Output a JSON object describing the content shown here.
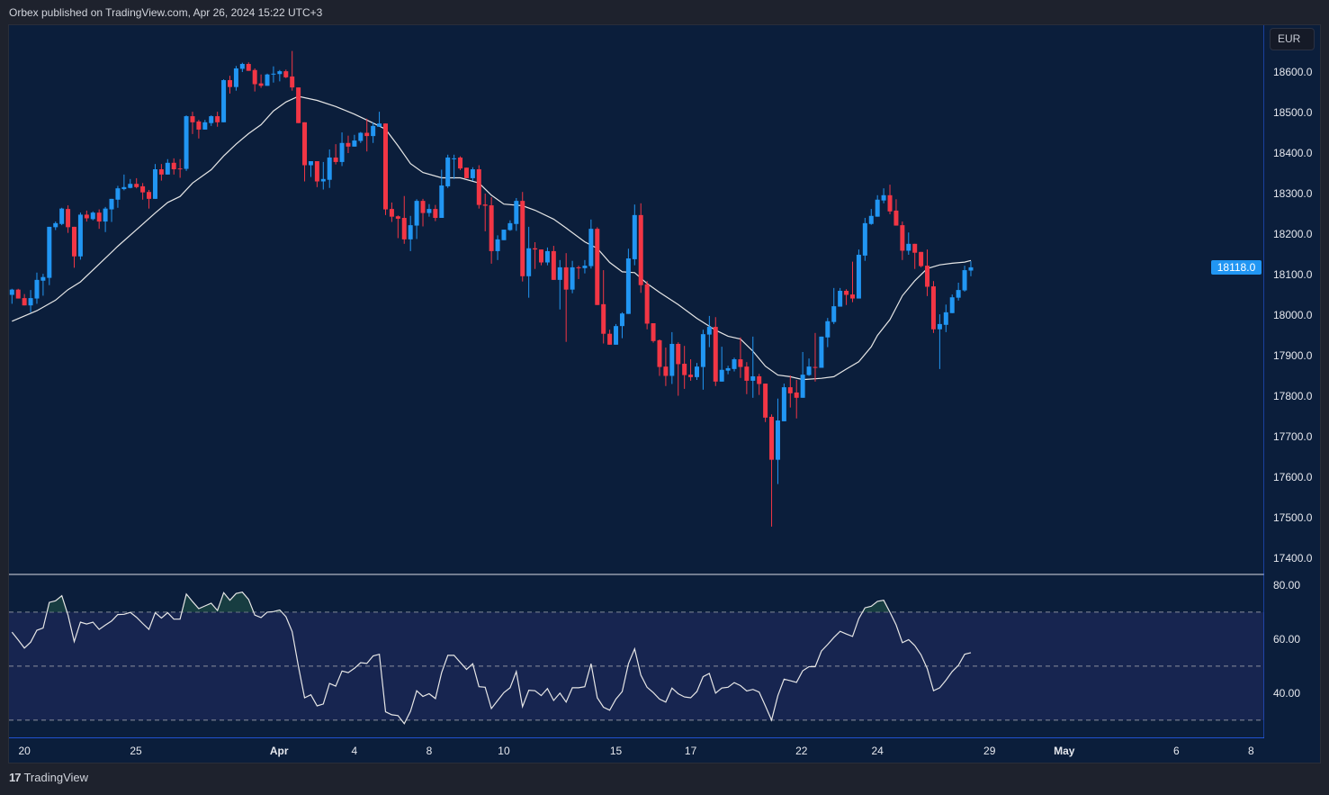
{
  "header": {
    "text": "Orbex published on TradingView.com, Apr 26, 2024 15:22 UTC+3"
  },
  "footer": {
    "logo_glyph": "17",
    "brand": "TradingView"
  },
  "currency_button": "EUR",
  "last_price_label": "18118.0",
  "colors": {
    "up": "#2196f3",
    "down": "#f23645",
    "ma": "#e6e6e6",
    "rsi": "#e6e6e6",
    "background": "#0b1e3b",
    "rsi_band": "#172550",
    "last_tag": "#2196f3"
  },
  "chart_data": {
    "type": "candlestick",
    "title": "",
    "ylim": [
      17360.0,
      18715.6
    ],
    "price_ticks": [
      "18600.0",
      "18500.0",
      "18400.0",
      "18300.0",
      "18200.0",
      "18100.0",
      "18000.0",
      "17900.0",
      "17800.0",
      "17700.0",
      "17600.0",
      "17500.0",
      "17400.0"
    ],
    "x_ticks": [
      {
        "label": "20",
        "index": 3,
        "bold": false
      },
      {
        "label": "25",
        "index": 20.9,
        "bold": false
      },
      {
        "label": "Apr",
        "index": 43.9,
        "bold": true
      },
      {
        "label": "4",
        "index": 56,
        "bold": false
      },
      {
        "label": "8",
        "index": 68,
        "bold": false
      },
      {
        "label": "10",
        "index": 80,
        "bold": false
      },
      {
        "label": "15",
        "index": 98,
        "bold": false
      },
      {
        "label": "17",
        "index": 110,
        "bold": false
      },
      {
        "label": "22",
        "index": 127.8,
        "bold": false
      },
      {
        "label": "24",
        "index": 140,
        "bold": false
      },
      {
        "label": "29",
        "index": 158,
        "bold": false
      },
      {
        "label": "May",
        "index": 170,
        "bold": true
      },
      {
        "label": "6",
        "index": 188,
        "bold": false
      },
      {
        "label": "8",
        "index": 200,
        "bold": false
      }
    ],
    "candles_ohlc": [
      [
        18050,
        18065,
        18028,
        18063
      ],
      [
        18063,
        18065,
        18041,
        18041
      ],
      [
        18042,
        18052,
        18024,
        18024
      ],
      [
        18024,
        18062,
        18007,
        18042
      ],
      [
        18041,
        18105,
        18028,
        18087
      ],
      [
        18085,
        18102,
        18048,
        18094
      ],
      [
        18092,
        18218,
        18074,
        18218
      ],
      [
        18217,
        18231,
        18210,
        18227
      ],
      [
        18225,
        18265,
        18222,
        18263
      ],
      [
        18262,
        18271,
        18203,
        18217
      ],
      [
        18218,
        18218,
        18117,
        18145
      ],
      [
        18145,
        18253,
        18137,
        18248
      ],
      [
        18248,
        18258,
        18231,
        18239
      ],
      [
        18237,
        18256,
        18234,
        18253
      ],
      [
        18253,
        18261,
        18213,
        18231
      ],
      [
        18231,
        18267,
        18205,
        18263
      ],
      [
        18261,
        18287,
        18230,
        18287
      ],
      [
        18285,
        18319,
        18265,
        18313
      ],
      [
        18311,
        18347,
        18308,
        18316
      ],
      [
        18314,
        18336,
        18313,
        18324
      ],
      [
        18324,
        18338,
        18313,
        18316
      ],
      [
        18318,
        18326,
        18285,
        18303
      ],
      [
        18304,
        18309,
        18263,
        18287
      ],
      [
        18287,
        18373,
        18287,
        18360
      ],
      [
        18360,
        18373,
        18332,
        18347
      ],
      [
        18347,
        18385,
        18347,
        18376
      ],
      [
        18376,
        18387,
        18347,
        18360
      ],
      [
        18362,
        18385,
        18339,
        18361
      ],
      [
        18361,
        18493,
        18356,
        18491
      ],
      [
        18491,
        18502,
        18447,
        18476
      ],
      [
        18478,
        18482,
        18436,
        18458
      ],
      [
        18458,
        18482,
        18458,
        18476
      ],
      [
        18474,
        18493,
        18467,
        18491
      ],
      [
        18491,
        18502,
        18465,
        18476
      ],
      [
        18476,
        18582,
        18476,
        18580
      ],
      [
        18580,
        18591,
        18547,
        18563
      ],
      [
        18563,
        18615,
        18554,
        18609
      ],
      [
        18608,
        18623,
        18600,
        18620
      ],
      [
        18620,
        18624,
        18603,
        18603
      ],
      [
        18605,
        18609,
        18552,
        18570
      ],
      [
        18572,
        18594,
        18561,
        18566
      ],
      [
        18566,
        18596,
        18566,
        18594
      ],
      [
        18595,
        18614,
        18574,
        18596
      ],
      [
        18595,
        18605,
        18577,
        18602
      ],
      [
        18602,
        18606,
        18585,
        18587
      ],
      [
        18589,
        18652,
        18554,
        18562
      ],
      [
        18562,
        18562,
        18474,
        18474
      ],
      [
        18476,
        18476,
        18330,
        18370
      ],
      [
        18370,
        18380,
        18341,
        18380
      ],
      [
        18380,
        18380,
        18316,
        18330
      ],
      [
        18330,
        18378,
        18310,
        18336
      ],
      [
        18334,
        18409,
        18314,
        18389
      ],
      [
        18389,
        18422,
        18372,
        18378
      ],
      [
        18378,
        18451,
        18368,
        18425
      ],
      [
        18425,
        18443,
        18400,
        18416
      ],
      [
        18416,
        18445,
        18416,
        18431
      ],
      [
        18430,
        18452,
        18425,
        18450
      ],
      [
        18450,
        18485,
        18404,
        18442
      ],
      [
        18442,
        18476,
        18425,
        18467
      ],
      [
        18465,
        18502,
        18465,
        18473
      ],
      [
        18473,
        18473,
        18247,
        18261
      ],
      [
        18262,
        18278,
        18230,
        18243
      ],
      [
        18244,
        18246,
        18190,
        18238
      ],
      [
        18240,
        18294,
        18176,
        18187
      ],
      [
        18187,
        18245,
        18158,
        18222
      ],
      [
        18221,
        18286,
        18188,
        18282
      ],
      [
        18282,
        18287,
        18219,
        18252
      ],
      [
        18252,
        18274,
        18243,
        18262
      ],
      [
        18262,
        18272,
        18232,
        18240
      ],
      [
        18240,
        18359,
        18240,
        18320
      ],
      [
        18318,
        18396,
        18314,
        18389
      ],
      [
        18387,
        18396,
        18336,
        18387
      ],
      [
        18389,
        18392,
        18358,
        18362
      ],
      [
        18364,
        18364,
        18338,
        18338
      ],
      [
        18338,
        18365,
        18331,
        18360
      ],
      [
        18360,
        18370,
        18263,
        18272
      ],
      [
        18273,
        18300,
        18207,
        18270
      ],
      [
        18271,
        18291,
        18127,
        18158
      ],
      [
        18158,
        18197,
        18136,
        18187
      ],
      [
        18185,
        18211,
        18185,
        18211
      ],
      [
        18210,
        18234,
        18208,
        18227
      ],
      [
        18225,
        18289,
        18208,
        18282
      ],
      [
        18282,
        18304,
        18083,
        18096
      ],
      [
        18096,
        18218,
        18043,
        18165
      ],
      [
        18165,
        18180,
        18114,
        18162
      ],
      [
        18162,
        18162,
        18123,
        18130
      ],
      [
        18130,
        18167,
        18123,
        18158
      ],
      [
        18158,
        18171,
        18087,
        18087
      ],
      [
        18087,
        18136,
        18014,
        18118
      ],
      [
        18118,
        18153,
        17934,
        18063
      ],
      [
        18063,
        18134,
        18054,
        18118
      ],
      [
        18118,
        18122,
        18089,
        18117
      ],
      [
        18116,
        18136,
        18103,
        18122
      ],
      [
        18121,
        18236,
        18115,
        18213
      ],
      [
        18213,
        18217,
        18025,
        18025
      ],
      [
        18027,
        18111,
        17930,
        17954
      ],
      [
        17954,
        17964,
        17927,
        17927
      ],
      [
        17927,
        17978,
        17927,
        17973
      ],
      [
        17973,
        18007,
        17943,
        18004
      ],
      [
        18003,
        18164,
        18003,
        18140
      ],
      [
        18138,
        18273,
        18123,
        18247
      ],
      [
        18247,
        18276,
        18055,
        18074
      ],
      [
        18076,
        18084,
        17965,
        17979
      ],
      [
        17980,
        17980,
        17932,
        17936
      ],
      [
        17938,
        17940,
        17850,
        17872
      ],
      [
        17873,
        17920,
        17825,
        17850
      ],
      [
        17850,
        17958,
        17830,
        17929
      ],
      [
        17929,
        17933,
        17801,
        17879
      ],
      [
        17880,
        17924,
        17818,
        17852
      ],
      [
        17853,
        17891,
        17838,
        17847
      ],
      [
        17847,
        17882,
        17840,
        17873
      ],
      [
        17872,
        17964,
        17816,
        17953
      ],
      [
        17952,
        17998,
        17921,
        17971
      ],
      [
        17971,
        17995,
        17825,
        17836
      ],
      [
        17836,
        17922,
        17836,
        17865
      ],
      [
        17863,
        17875,
        17854,
        17869
      ],
      [
        17867,
        17895,
        17861,
        17891
      ],
      [
        17891,
        17945,
        17845,
        17872
      ],
      [
        17873,
        17884,
        17805,
        17838
      ],
      [
        17838,
        17947,
        17796,
        17849
      ],
      [
        17849,
        17855,
        17803,
        17830
      ],
      [
        17831,
        17831,
        17736,
        17747
      ],
      [
        17749,
        17755,
        17478,
        17643
      ],
      [
        17643,
        17794,
        17583,
        17740
      ],
      [
        17738,
        17831,
        17738,
        17822
      ],
      [
        17822,
        17851,
        17772,
        17807
      ],
      [
        17809,
        17840,
        17745,
        17796
      ],
      [
        17796,
        17909,
        17796,
        17853
      ],
      [
        17852,
        17893,
        17850,
        17873
      ],
      [
        17872,
        17956,
        17836,
        17871
      ],
      [
        17870,
        17947,
        17870,
        17947
      ],
      [
        17945,
        17993,
        17921,
        17985
      ],
      [
        17983,
        18067,
        17978,
        18022
      ],
      [
        18021,
        18067,
        18021,
        18060
      ],
      [
        18060,
        18064,
        18025,
        18050
      ],
      [
        18051,
        18132,
        18032,
        18041
      ],
      [
        18041,
        18162,
        18041,
        18149
      ],
      [
        18147,
        18240,
        18134,
        18227
      ],
      [
        18225,
        18262,
        18223,
        18245
      ],
      [
        18243,
        18296,
        18243,
        18285
      ],
      [
        18283,
        18313,
        18276,
        18296
      ],
      [
        18296,
        18322,
        18249,
        18256
      ],
      [
        18258,
        18286,
        18221,
        18221
      ],
      [
        18222,
        18231,
        18136,
        18159
      ],
      [
        18159,
        18204,
        18149,
        18176
      ],
      [
        18176,
        18176,
        18114,
        18154
      ],
      [
        18156,
        18156,
        18118,
        18121
      ],
      [
        18122,
        18162,
        18047,
        18070
      ],
      [
        18071,
        18084,
        17956,
        17965
      ],
      [
        17965,
        18002,
        17867,
        17978
      ],
      [
        17976,
        18026,
        17958,
        18007
      ],
      [
        18005,
        18051,
        18005,
        18044
      ],
      [
        18043,
        18080,
        18036,
        18062
      ],
      [
        18061,
        18122,
        18058,
        18111
      ],
      [
        18110,
        18133,
        18096,
        18118
      ]
    ],
    "moving_average": [
      [
        1,
        17985
      ],
      [
        5,
        18011
      ],
      [
        8,
        18037
      ],
      [
        10,
        18063
      ],
      [
        12,
        18082
      ],
      [
        15,
        18126
      ],
      [
        18,
        18170
      ],
      [
        21,
        18211
      ],
      [
        24,
        18252
      ],
      [
        26,
        18278
      ],
      [
        28,
        18293
      ],
      [
        30,
        18326
      ],
      [
        33,
        18359
      ],
      [
        35,
        18393
      ],
      [
        37,
        18422
      ],
      [
        39,
        18448
      ],
      [
        41,
        18470
      ],
      [
        43,
        18504
      ],
      [
        45,
        18526
      ],
      [
        47,
        18540
      ],
      [
        50,
        18530
      ],
      [
        53,
        18515
      ],
      [
        56,
        18496
      ],
      [
        59,
        18474
      ],
      [
        61,
        18459
      ],
      [
        63,
        18418
      ],
      [
        65,
        18374
      ],
      [
        67,
        18352
      ],
      [
        70,
        18339
      ],
      [
        73,
        18339
      ],
      [
        76,
        18326
      ],
      [
        78,
        18296
      ],
      [
        80,
        18274
      ],
      [
        83,
        18270
      ],
      [
        85,
        18259
      ],
      [
        88,
        18237
      ],
      [
        90,
        18215
      ],
      [
        93,
        18181
      ],
      [
        95,
        18165
      ],
      [
        97,
        18130
      ],
      [
        99,
        18107
      ],
      [
        101,
        18105
      ],
      [
        103,
        18078
      ],
      [
        105,
        18056
      ],
      [
        108,
        18026
      ],
      [
        111,
        17992
      ],
      [
        114,
        17963
      ],
      [
        116,
        17948
      ],
      [
        118,
        17941
      ],
      [
        120,
        17911
      ],
      [
        122,
        17874
      ],
      [
        124,
        17852
      ],
      [
        126,
        17848
      ],
      [
        128,
        17841
      ],
      [
        131,
        17844
      ],
      [
        133,
        17848
      ],
      [
        135,
        17867
      ],
      [
        137,
        17885
      ],
      [
        139,
        17922
      ],
      [
        140,
        17950
      ],
      [
        142,
        17989
      ],
      [
        144,
        18048
      ],
      [
        146,
        18085
      ],
      [
        148,
        18115
      ],
      [
        150,
        18124
      ],
      [
        152,
        18128
      ],
      [
        154,
        18131
      ],
      [
        155,
        18135
      ]
    ],
    "rsi": {
      "ylim": [
        23.3,
        83.3
      ],
      "levels": [
        70,
        50,
        30
      ],
      "ticks": [
        "80.00",
        "60.00",
        "40.00"
      ],
      "values": [
        62.6,
        59.7,
        56.7,
        58.9,
        63.3,
        64.1,
        73.6,
        74.2,
        76.1,
        68.9,
        59.1,
        66.3,
        65.6,
        66.3,
        63.6,
        65.2,
        66.7,
        69.1,
        69.2,
        69.9,
        68.1,
        65.8,
        63.6,
        69.8,
        67.8,
        69.8,
        67.4,
        67.4,
        76.7,
        73.9,
        71.3,
        72.3,
        73.3,
        70.6,
        77.2,
        74.4,
        76.9,
        77.4,
        74.7,
        68.9,
        68.0,
        70.0,
        70.2,
        70.8,
        68.3,
        62.8,
        50.0,
        38.3,
        39.4,
        35.3,
        36.0,
        43.6,
        42.6,
        48.2,
        47.6,
        49.2,
        51.3,
        51.0,
        53.8,
        54.4,
        33.1,
        32.0,
        31.7,
        28.7,
        33.3,
        40.9,
        38.8,
        39.8,
        38.0,
        47.6,
        54.0,
        54.0,
        51.4,
        48.8,
        50.9,
        42.4,
        42.2,
        34.3,
        37.3,
        40.2,
        42.0,
        48.0,
        35.0,
        41.1,
        40.9,
        39.1,
        41.7,
        37.3,
        40.0,
        36.7,
        42.0,
        42.0,
        42.4,
        50.9,
        38.3,
        34.8,
        33.7,
        37.8,
        40.6,
        50.9,
        56.4,
        46.7,
        42.2,
        40.2,
        37.8,
        36.7,
        41.9,
        39.8,
        38.6,
        38.3,
        40.6,
        46.1,
        47.3,
        40.0,
        41.9,
        42.2,
        43.9,
        42.8,
        40.8,
        41.4,
        40.4,
        35.3,
        30.0,
        39.1,
        45.2,
        44.6,
        44.0,
        48.3,
        49.8,
        49.8,
        55.6,
        58.0,
        60.6,
        62.9,
        61.9,
        61.0,
        67.6,
        71.6,
        72.2,
        74.0,
        74.4,
        70.0,
        65.3,
        58.7,
        59.8,
        57.6,
        54.2,
        49.1,
        40.9,
        42.0,
        44.8,
        48.0,
        50.3,
        54.4,
        55.0
      ]
    }
  }
}
